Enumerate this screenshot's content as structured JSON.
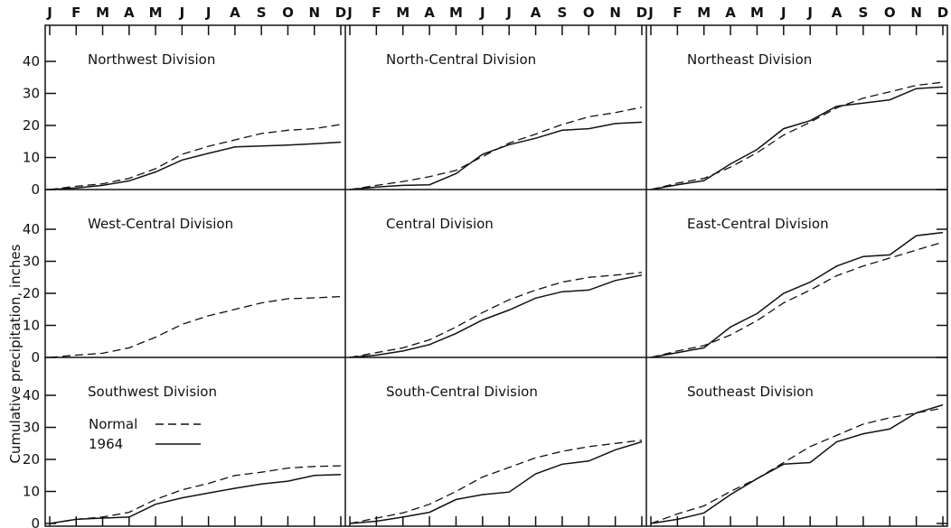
{
  "chart_data": {
    "type": "line",
    "ylabel": "Cumulative precipitation, inches",
    "months": [
      "J",
      "F",
      "M",
      "A",
      "M",
      "J",
      "J",
      "A",
      "S",
      "O",
      "N",
      "D"
    ],
    "yticks": [
      0,
      10,
      20,
      30,
      40
    ],
    "ylim": [
      0,
      48
    ],
    "legend": {
      "placement": "Southwest Division panel, left",
      "entries": [
        {
          "label": "Normal",
          "style": "dashed"
        },
        {
          "label": "1964",
          "style": "solid"
        }
      ]
    },
    "panels": [
      {
        "title": "Northwest Division",
        "normal": [
          0,
          1,
          1.8,
          3.5,
          6.5,
          11,
          13.5,
          15.5,
          17.5,
          18.5,
          19,
          20.3
        ],
        "y1964": [
          0,
          0.5,
          1.3,
          2.7,
          5.5,
          9.2,
          11.3,
          13.3,
          13.6,
          13.9,
          14.3,
          14.8
        ]
      },
      {
        "title": "North-Central Division",
        "normal": [
          0,
          1.3,
          2.5,
          4,
          6,
          10.3,
          14.5,
          17.3,
          20.3,
          22.7,
          24,
          25.7
        ],
        "y1964": [
          0,
          0.8,
          1.3,
          1.5,
          5,
          11,
          14,
          16,
          18.5,
          19,
          20.6,
          21
        ]
      },
      {
        "title": "Northeast Division",
        "normal": [
          0,
          2,
          3.5,
          7,
          11.5,
          17,
          21,
          25.5,
          28.5,
          30.5,
          32.5,
          33.5
        ],
        "y1964": [
          0,
          1.5,
          2.8,
          8,
          12.5,
          19,
          21.5,
          26,
          27,
          28,
          31.5,
          32
        ]
      },
      {
        "title": "West-Central Division",
        "normal": [
          0,
          0.7,
          1.3,
          3,
          6.3,
          10.3,
          13,
          15,
          17,
          18.3,
          18.6,
          19
        ]
      },
      {
        "title": "Central Division",
        "normal": [
          0,
          1.5,
          3,
          5.5,
          9.5,
          14,
          18,
          21,
          23.5,
          25,
          25.7,
          26.5
        ],
        "y1964": [
          0,
          0.7,
          2,
          4,
          7.5,
          11.7,
          14.8,
          18.5,
          20.5,
          21,
          24,
          25.7
        ]
      },
      {
        "title": "East-Central Division",
        "normal": [
          0,
          2,
          3.7,
          7,
          11.5,
          17,
          21,
          25.5,
          28.5,
          31,
          33.5,
          36
        ],
        "y1964": [
          0,
          1.5,
          3,
          9.5,
          13.7,
          20,
          23.5,
          28.5,
          31.5,
          32,
          38,
          39
        ]
      },
      {
        "title": "Southwest Division",
        "normal": [
          0,
          1.3,
          2,
          3.5,
          7.5,
          10.5,
          12.5,
          15,
          16,
          17.3,
          17.8,
          18
        ],
        "y1964": [
          0,
          1.3,
          1.7,
          2,
          6,
          8,
          9.5,
          11,
          12.3,
          13.2,
          15,
          15.3
        ]
      },
      {
        "title": "South-Central Division",
        "normal": [
          0,
          1.7,
          3.3,
          6,
          10,
          14.5,
          17.5,
          20.5,
          22.5,
          24,
          25,
          26
        ],
        "y1964": [
          0,
          0.7,
          2,
          3.5,
          7.5,
          9,
          9.8,
          15.5,
          18.5,
          19.5,
          23,
          25.5
        ]
      },
      {
        "title": "Southeast Division",
        "normal": [
          0,
          3,
          5.5,
          10,
          14,
          19,
          24,
          27.5,
          31,
          33,
          34.5,
          36
        ],
        "y1964": [
          0,
          1.3,
          3.3,
          9,
          14,
          18.5,
          19,
          25.5,
          28,
          29.5,
          34.5,
          37
        ]
      }
    ]
  }
}
